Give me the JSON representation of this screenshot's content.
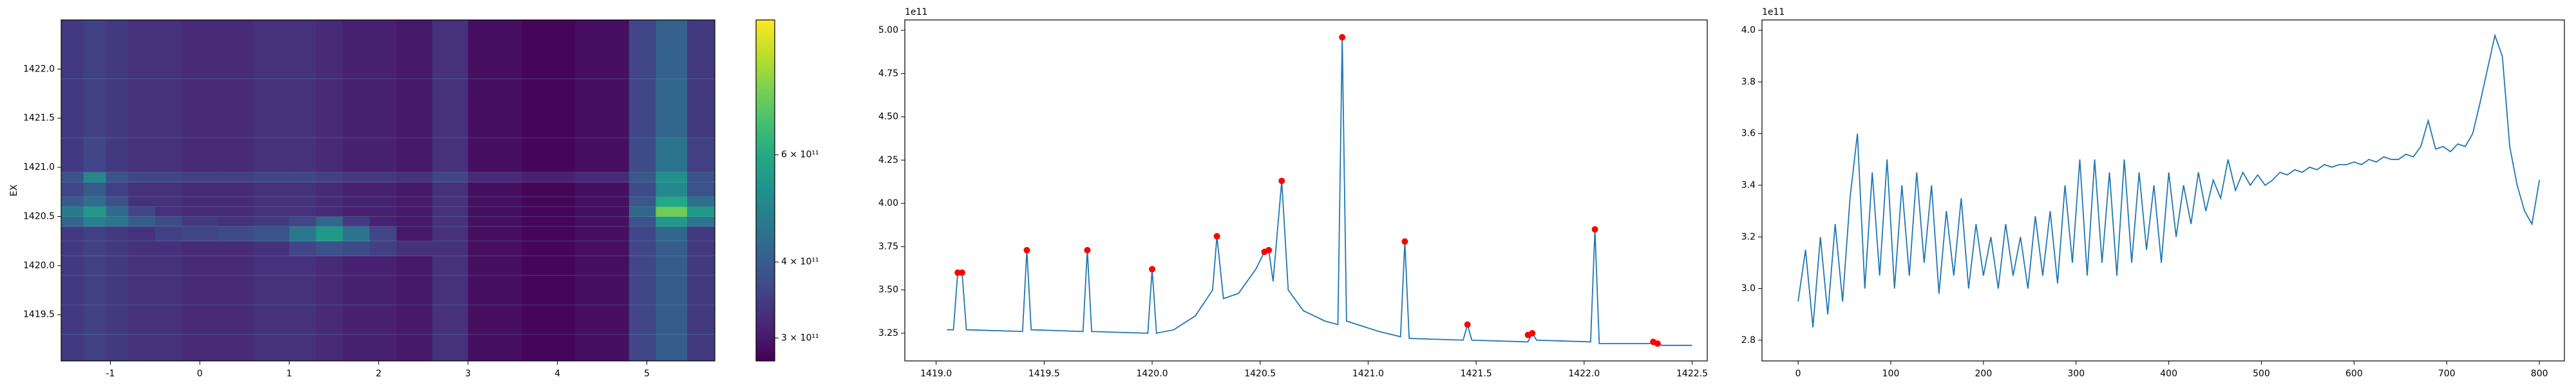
{
  "chart_data": [
    {
      "type": "heatmap",
      "ylabel": "EX",
      "xlim": [
        -1.55,
        5.76
      ],
      "xticks": [
        -1,
        0,
        1,
        2,
        3,
        4,
        5
      ],
      "ylim": [
        1419.03,
        1422.5
      ],
      "yticks": [
        {
          "value": 1419.5,
          "label": "1419.5"
        },
        {
          "value": 1420.0,
          "label": "1420.0"
        },
        {
          "value": 1420.5,
          "label": "1420.5"
        },
        {
          "value": 1421.0,
          "label": "1421.0"
        },
        {
          "value": 1421.5,
          "label": "1421.5"
        },
        {
          "value": 1422.0,
          "label": "1422.0"
        }
      ],
      "x_edges": [
        -1.55,
        -1.3,
        -1.05,
        -0.8,
        -0.5,
        -0.2,
        0.2,
        0.6,
        1.0,
        1.3,
        1.6,
        1.9,
        2.2,
        2.6,
        3.0,
        3.6,
        4.2,
        4.8,
        5.1,
        5.45,
        5.76
      ],
      "y_edges": [
        1419.03,
        1419.3,
        1419.6,
        1419.9,
        1420.1,
        1420.25,
        1420.4,
        1420.5,
        1420.6,
        1420.7,
        1420.85,
        1420.95,
        1421.3,
        1421.9,
        1422.5
      ],
      "z": [
        [
          340000000000.0,
          350000000000.0,
          340000000000.0,
          330000000000.0,
          330000000000.0,
          320000000000.0,
          320000000000.0,
          330000000000.0,
          330000000000.0,
          320000000000.0,
          310000000000.0,
          310000000000.0,
          300000000000.0,
          330000000000.0,
          290000000000.0,
          280000000000.0,
          290000000000.0,
          360000000000.0,
          400000000000.0,
          340000000000.0
        ],
        [
          340000000000.0,
          350000000000.0,
          340000000000.0,
          330000000000.0,
          330000000000.0,
          320000000000.0,
          320000000000.0,
          330000000000.0,
          330000000000.0,
          320000000000.0,
          310000000000.0,
          310000000000.0,
          300000000000.0,
          330000000000.0,
          290000000000.0,
          280000000000.0,
          290000000000.0,
          360000000000.0,
          400000000000.0,
          340000000000.0
        ],
        [
          340000000000.0,
          350000000000.0,
          340000000000.0,
          330000000000.0,
          330000000000.0,
          320000000000.0,
          320000000000.0,
          330000000000.0,
          330000000000.0,
          320000000000.0,
          310000000000.0,
          310000000000.0,
          300000000000.0,
          330000000000.0,
          290000000000.0,
          280000000000.0,
          290000000000.0,
          360000000000.0,
          400000000000.0,
          340000000000.0
        ],
        [
          340000000000.0,
          350000000000.0,
          340000000000.0,
          330000000000.0,
          330000000000.0,
          320000000000.0,
          320000000000.0,
          330000000000.0,
          330000000000.0,
          320000000000.0,
          310000000000.0,
          310000000000.0,
          300000000000.0,
          330000000000.0,
          290000000000.0,
          280000000000.0,
          290000000000.0,
          360000000000.0,
          400000000000.0,
          340000000000.0
        ],
        [
          340000000000.0,
          350000000000.0,
          340000000000.0,
          330000000000.0,
          330000000000.0,
          320000000000.0,
          320000000000.0,
          330000000000.0,
          360000000000.0,
          380000000000.0,
          370000000000.0,
          350000000000.0,
          330000000000.0,
          330000000000.0,
          290000000000.0,
          280000000000.0,
          290000000000.0,
          360000000000.0,
          400000000000.0,
          340000000000.0
        ],
        [
          340000000000.0,
          350000000000.0,
          340000000000.0,
          330000000000.0,
          350000000000.0,
          360000000000.0,
          370000000000.0,
          380000000000.0,
          460000000000.0,
          550000000000.0,
          450000000000.0,
          360000000000.0,
          300000000000.0,
          330000000000.0,
          290000000000.0,
          280000000000.0,
          290000000000.0,
          360000000000.0,
          420000000000.0,
          340000000000.0
        ],
        [
          420000000000.0,
          480000000000.0,
          450000000000.0,
          400000000000.0,
          370000000000.0,
          340000000000.0,
          330000000000.0,
          340000000000.0,
          360000000000.0,
          420000000000.0,
          340000000000.0,
          310000000000.0,
          300000000000.0,
          330000000000.0,
          290000000000.0,
          280000000000.0,
          290000000000.0,
          380000000000.0,
          550000000000.0,
          450000000000.0
        ],
        [
          460000000000.0,
          550000000000.0,
          430000000000.0,
          360000000000.0,
          330000000000.0,
          320000000000.0,
          320000000000.0,
          330000000000.0,
          330000000000.0,
          320000000000.0,
          310000000000.0,
          310000000000.0,
          300000000000.0,
          330000000000.0,
          290000000000.0,
          280000000000.0,
          290000000000.0,
          420000000000.0,
          750000000000.0,
          550000000000.0
        ],
        [
          400000000000.0,
          440000000000.0,
          380000000000.0,
          330000000000.0,
          330000000000.0,
          320000000000.0,
          320000000000.0,
          330000000000.0,
          330000000000.0,
          320000000000.0,
          310000000000.0,
          310000000000.0,
          300000000000.0,
          330000000000.0,
          290000000000.0,
          280000000000.0,
          290000000000.0,
          390000000000.0,
          600000000000.0,
          440000000000.0
        ],
        [
          360000000000.0,
          400000000000.0,
          350000000000.0,
          330000000000.0,
          330000000000.0,
          320000000000.0,
          320000000000.0,
          330000000000.0,
          330000000000.0,
          320000000000.0,
          310000000000.0,
          310000000000.0,
          300000000000.0,
          330000000000.0,
          290000000000.0,
          280000000000.0,
          290000000000.0,
          370000000000.0,
          500000000000.0,
          380000000000.0
        ],
        [
          380000000000.0,
          500000000000.0,
          380000000000.0,
          360000000000.0,
          360000000000.0,
          350000000000.0,
          350000000000.0,
          360000000000.0,
          360000000000.0,
          350000000000.0,
          340000000000.0,
          340000000000.0,
          330000000000.0,
          360000000000.0,
          320000000000.0,
          310000000000.0,
          320000000000.0,
          390000000000.0,
          520000000000.0,
          380000000000.0
        ],
        [
          340000000000.0,
          360000000000.0,
          340000000000.0,
          330000000000.0,
          330000000000.0,
          320000000000.0,
          320000000000.0,
          330000000000.0,
          330000000000.0,
          320000000000.0,
          310000000000.0,
          310000000000.0,
          300000000000.0,
          330000000000.0,
          290000000000.0,
          280000000000.0,
          290000000000.0,
          370000000000.0,
          450000000000.0,
          350000000000.0
        ],
        [
          340000000000.0,
          350000000000.0,
          340000000000.0,
          330000000000.0,
          330000000000.0,
          320000000000.0,
          320000000000.0,
          330000000000.0,
          330000000000.0,
          320000000000.0,
          310000000000.0,
          310000000000.0,
          300000000000.0,
          330000000000.0,
          290000000000.0,
          280000000000.0,
          290000000000.0,
          360000000000.0,
          420000000000.0,
          340000000000.0
        ],
        [
          340000000000.0,
          350000000000.0,
          340000000000.0,
          330000000000.0,
          330000000000.0,
          320000000000.0,
          320000000000.0,
          330000000000.0,
          330000000000.0,
          320000000000.0,
          310000000000.0,
          310000000000.0,
          300000000000.0,
          330000000000.0,
          290000000000.0,
          280000000000.0,
          290000000000.0,
          360000000000.0,
          410000000000.0,
          340000000000.0
        ]
      ],
      "colormap": "viridis",
      "colorbar": {
        "scale": "log",
        "lim": [
          275000000000.0,
          1000000000000.0
        ],
        "ticks": [
          {
            "value": 300000000000.0,
            "label": "3 × 10¹¹"
          },
          {
            "value": 400000000000.0,
            "label": "4 × 10¹¹"
          },
          {
            "value": 600000000000.0,
            "label": "6 × 10¹¹"
          }
        ]
      }
    },
    {
      "type": "line",
      "offset_text": "1e11",
      "xlim": [
        1418.855,
        1422.57
      ],
      "xticks": [
        {
          "value": 1419.0,
          "label": "1419.0"
        },
        1419.5,
        {
          "value": 1420.0,
          "label": "1420.0"
        },
        1420.5,
        {
          "value": 1421.0,
          "label": "1421.0"
        },
        1421.5,
        {
          "value": 1422.0,
          "label": "1422.0"
        },
        1422.5
      ],
      "ylim": [
        3.09,
        5.06
      ],
      "yticks": [
        3.25,
        {
          "value": 3.5,
          "label": "3.50"
        },
        3.75,
        {
          "value": 4.0,
          "label": "4.00"
        },
        4.25,
        {
          "value": 4.5,
          "label": "4.50"
        },
        4.75,
        {
          "value": 5.0,
          "label": "5.00"
        }
      ],
      "series": [
        {
          "style": "line",
          "color": "#1f77b4",
          "x": [
            1419.05,
            1419.08,
            1419.1,
            1419.12,
            1419.14,
            1419.4,
            1419.42,
            1419.44,
            1419.68,
            1419.7,
            1419.72,
            1419.98,
            1420.0,
            1420.02,
            1420.1,
            1420.2,
            1420.28,
            1420.3,
            1420.33,
            1420.4,
            1420.48,
            1420.52,
            1420.54,
            1420.56,
            1420.6,
            1420.63,
            1420.7,
            1420.8,
            1420.86,
            1420.88,
            1420.9,
            1420.95,
            1421.05,
            1421.15,
            1421.17,
            1421.19,
            1421.44,
            1421.46,
            1421.48,
            1421.74,
            1421.76,
            1421.78,
            1422.03,
            1422.05,
            1422.07,
            1422.3,
            1422.33,
            1422.36,
            1422.5
          ],
          "values": [
            3.27,
            3.27,
            3.6,
            3.6,
            3.27,
            3.26,
            3.73,
            3.27,
            3.26,
            3.73,
            3.26,
            3.25,
            3.62,
            3.25,
            3.27,
            3.35,
            3.5,
            3.81,
            3.45,
            3.48,
            3.62,
            3.72,
            3.73,
            3.55,
            4.13,
            3.5,
            3.38,
            3.32,
            3.3,
            4.96,
            3.32,
            3.3,
            3.26,
            3.23,
            3.78,
            3.22,
            3.21,
            3.3,
            3.21,
            3.2,
            3.25,
            3.21,
            3.2,
            3.85,
            3.19,
            3.19,
            3.2,
            3.18,
            3.18
          ]
        },
        {
          "style": "points",
          "color": "#ff0000",
          "x": [
            1419.1,
            1419.12,
            1419.42,
            1419.7,
            1420.0,
            1420.3,
            1420.52,
            1420.54,
            1420.6,
            1420.88,
            1421.17,
            1421.46,
            1421.74,
            1421.76,
            1422.05,
            1422.32,
            1422.34
          ],
          "values": [
            3.6,
            3.6,
            3.73,
            3.73,
            3.62,
            3.81,
            3.72,
            3.73,
            4.13,
            4.96,
            3.78,
            3.3,
            3.24,
            3.25,
            3.85,
            3.2,
            3.19
          ]
        }
      ]
    },
    {
      "type": "line",
      "offset_text": "1e11",
      "xlim": [
        -39,
        827
      ],
      "xticks": [
        0,
        100,
        200,
        300,
        400,
        500,
        600,
        700,
        800
      ],
      "ylim": [
        2.72,
        4.04
      ],
      "yticks": [
        2.8,
        {
          "value": 3.0,
          "label": "3.0"
        },
        3.2,
        3.4,
        3.6,
        3.8,
        {
          "value": 4.0,
          "label": "4.0"
        }
      ],
      "series": [
        {
          "style": "line",
          "color": "#1f77b4",
          "x": [
            0,
            8,
            16,
            24,
            32,
            40,
            48,
            56,
            64,
            72,
            80,
            88,
            96,
            104,
            112,
            120,
            128,
            136,
            144,
            152,
            160,
            168,
            176,
            184,
            192,
            200,
            208,
            216,
            224,
            232,
            240,
            248,
            256,
            264,
            272,
            280,
            288,
            296,
            304,
            312,
            320,
            328,
            336,
            344,
            352,
            360,
            368,
            376,
            384,
            392,
            400,
            408,
            416,
            424,
            432,
            440,
            448,
            456,
            464,
            472,
            480,
            488,
            496,
            504,
            512,
            520,
            528,
            536,
            544,
            552,
            560,
            568,
            576,
            584,
            592,
            600,
            608,
            616,
            624,
            632,
            640,
            648,
            656,
            664,
            672,
            680,
            688,
            696,
            704,
            712,
            720,
            728,
            736,
            744,
            752,
            760,
            768,
            776,
            784,
            792,
            800
          ],
          "values": [
            2.95,
            3.15,
            2.85,
            3.2,
            2.9,
            3.25,
            2.95,
            3.35,
            3.6,
            3.0,
            3.45,
            3.05,
            3.5,
            3.0,
            3.4,
            3.05,
            3.45,
            3.1,
            3.4,
            2.98,
            3.3,
            3.05,
            3.35,
            3.0,
            3.25,
            3.05,
            3.2,
            3.0,
            3.25,
            3.05,
            3.2,
            3.0,
            3.28,
            3.05,
            3.3,
            3.02,
            3.4,
            3.1,
            3.5,
            3.05,
            3.5,
            3.1,
            3.45,
            3.05,
            3.5,
            3.1,
            3.45,
            3.15,
            3.4,
            3.1,
            3.45,
            3.2,
            3.4,
            3.25,
            3.45,
            3.3,
            3.42,
            3.35,
            3.5,
            3.38,
            3.45,
            3.4,
            3.44,
            3.4,
            3.42,
            3.45,
            3.44,
            3.46,
            3.45,
            3.47,
            3.46,
            3.48,
            3.47,
            3.48,
            3.48,
            3.49,
            3.48,
            3.5,
            3.49,
            3.51,
            3.5,
            3.5,
            3.52,
            3.51,
            3.55,
            3.65,
            3.54,
            3.55,
            3.53,
            3.56,
            3.55,
            3.6,
            3.72,
            3.85,
            3.98,
            3.9,
            3.55,
            3.4,
            3.3,
            3.25,
            3.42
          ]
        }
      ]
    }
  ]
}
